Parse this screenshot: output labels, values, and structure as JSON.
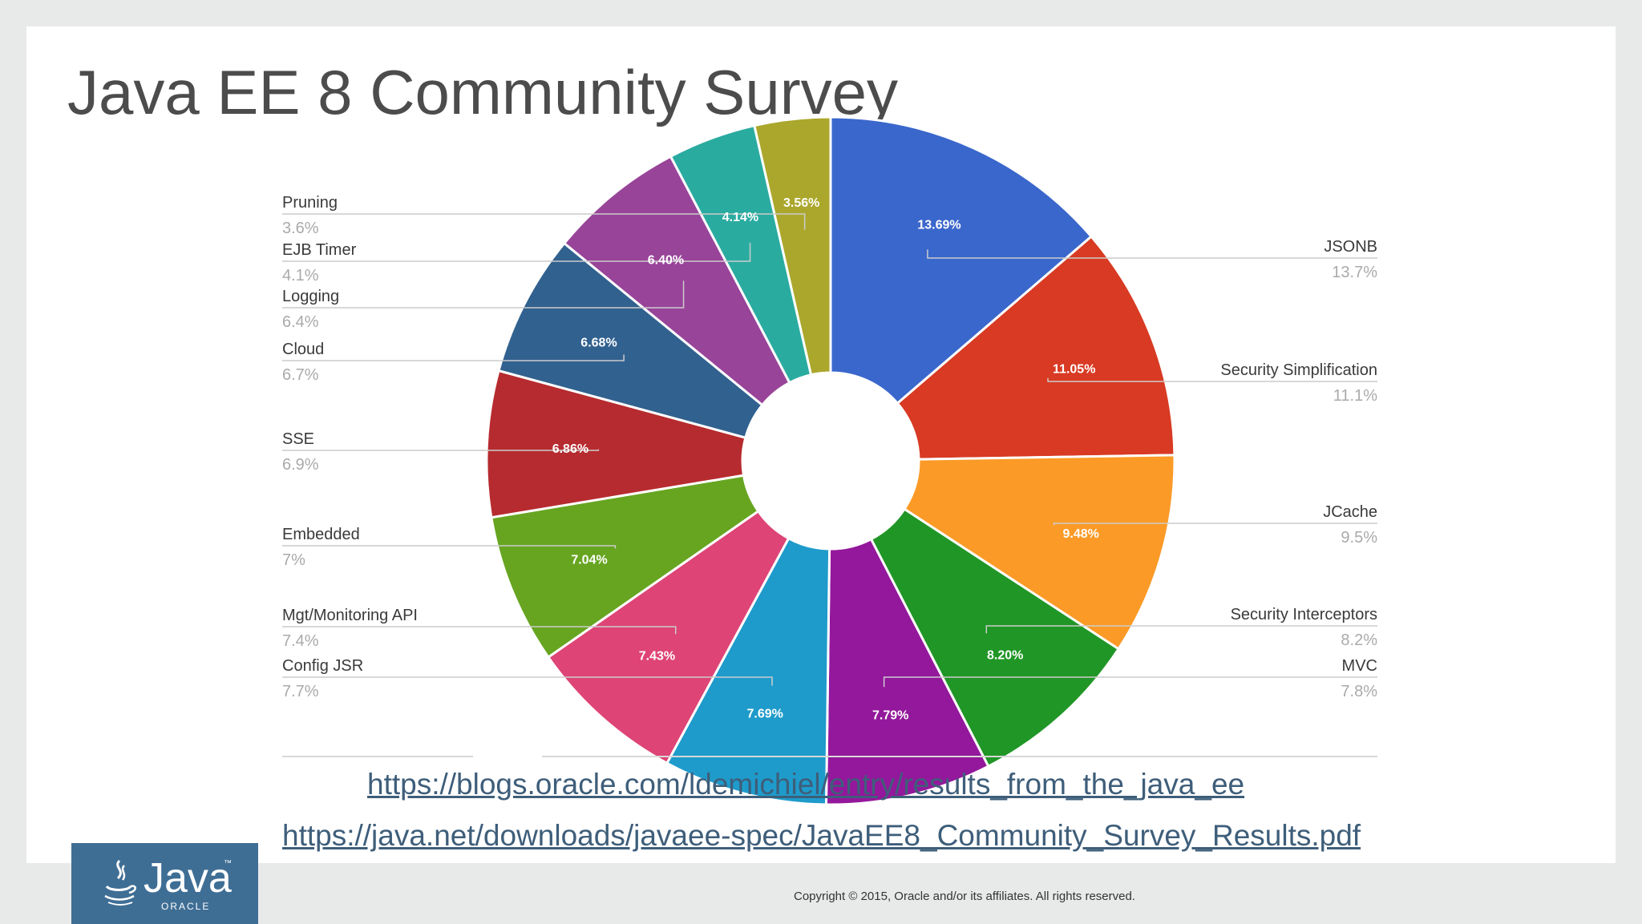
{
  "slide": {
    "title": "Java EE 8 Community Survey",
    "links": [
      "https://blogs.oracle.com/ldemichiel/entry/results_from_the_java_ee",
      "https://java.net/downloads/javaee-spec/JavaEE8_Community_Survey_Results.pdf"
    ],
    "copyright": "Copyright © 2015, Oracle and/or its affiliates. All rights reserved.",
    "logo": {
      "word": "Java",
      "tm": "™",
      "brand": "ORACLE",
      "icon": "java-cup-icon",
      "color": "#3f6e95"
    }
  },
  "chart_data": {
    "type": "pie",
    "donut": true,
    "title": "",
    "slices": [
      {
        "name": "JSONB",
        "value": 13.69,
        "label": "13.7%",
        "inner_label": "13.69%",
        "color": "#3a67cc"
      },
      {
        "name": "Security Simplification",
        "value": 11.05,
        "label": "11.1%",
        "inner_label": "11.05%",
        "color": "#d83a23"
      },
      {
        "name": "JCache",
        "value": 9.48,
        "label": "9.5%",
        "inner_label": "9.48%",
        "color": "#fb9a27"
      },
      {
        "name": "Security Interceptors",
        "value": 8.2,
        "label": "8.2%",
        "inner_label": "8.20%",
        "color": "#209626"
      },
      {
        "name": "MVC",
        "value": 7.79,
        "label": "7.8%",
        "inner_label": "7.79%",
        "color": "#93189b"
      },
      {
        "name": "Config JSR",
        "value": 7.69,
        "label": "7.7%",
        "inner_label": "7.69%",
        "color": "#1e9bcb"
      },
      {
        "name": "Mgt/Monitoring API",
        "value": 7.43,
        "label": "7.4%",
        "inner_label": "7.43%",
        "color": "#de4476"
      },
      {
        "name": "Embedded",
        "value": 7.04,
        "label": "7%",
        "inner_label": "7.04%",
        "color": "#67a521"
      },
      {
        "name": "SSE",
        "value": 6.86,
        "label": "6.9%",
        "inner_label": "6.86%",
        "color": "#b62b2f"
      },
      {
        "name": "Cloud",
        "value": 6.68,
        "label": "6.7%",
        "inner_label": "6.68%",
        "color": "#31618f"
      },
      {
        "name": "Logging",
        "value": 6.4,
        "label": "6.4%",
        "inner_label": "6.40%",
        "color": "#984499"
      },
      {
        "name": "EJB Timer",
        "value": 4.14,
        "label": "4.1%",
        "inner_label": "4.14%",
        "color": "#2aaba0"
      },
      {
        "name": "Pruning",
        "value": 3.56,
        "label": "3.6%",
        "inner_label": "3.56%",
        "color": "#aba72c"
      }
    ],
    "legend_placement": "callouts left and right"
  }
}
